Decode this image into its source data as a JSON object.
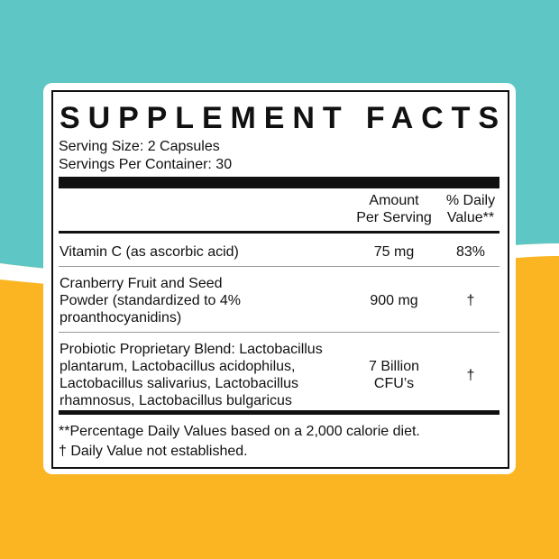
{
  "header": {
    "title": "SUPPLEMENT FACTS",
    "serving_size": "Serving Size: 2 Capsules",
    "servings_per_container": "Servings Per Container: 30"
  },
  "table": {
    "columns": [
      [
        "Amount",
        "Per Serving"
      ],
      [
        "% Daily",
        "Value**"
      ]
    ],
    "rows": [
      [
        [
          "Vitamin C (as ascorbic acid)"
        ],
        [
          "75 mg"
        ],
        [
          "83%"
        ]
      ],
      [
        [
          "Cranberry Fruit and Seed",
          "Powder (standardized to 4%",
          "proanthocyanidins)"
        ],
        [
          "900 mg"
        ],
        [
          "†"
        ]
      ],
      [
        [
          "Probiotic Proprietary Blend: Lactobacillus",
          "plantarum, Lactobacillus acidophilus,",
          "Lactobacillus salivarius, Lactobacillus",
          "rhamnosus, Lactobacillus bulgaricus"
        ],
        [
          "7 Billion",
          "CFU’s"
        ],
        [
          "†"
        ]
      ]
    ]
  },
  "footnotes": [
    "**Percentage Daily Values based on a 2,000 calorie diet.",
    "† Daily Value not established."
  ]
}
